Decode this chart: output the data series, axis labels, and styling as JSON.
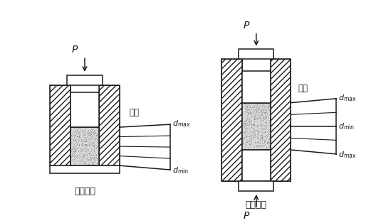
{
  "bg_color": "#ffffff",
  "line_color": "#1a1a1a",
  "powder_color": "#cccccc",
  "title1": "单向压制",
  "title2": "双向压制",
  "label_density": "密度",
  "label_P": "P",
  "fig_width": 5.28,
  "fig_height": 3.14,
  "dpi": 100
}
